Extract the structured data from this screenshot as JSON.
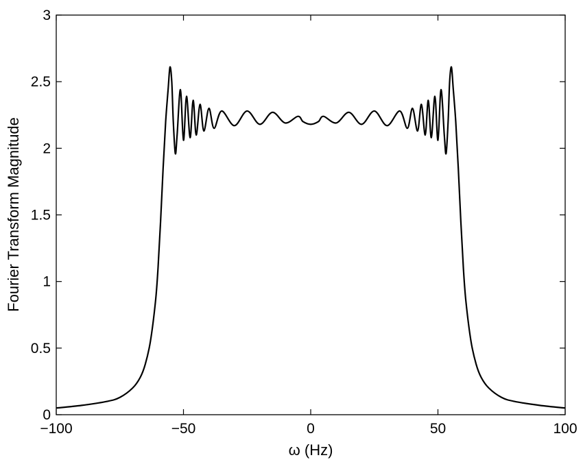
{
  "chart_data": {
    "type": "line",
    "title": "",
    "xlabel": "ω (Hz)",
    "ylabel": "Fourier Transform Magnitude",
    "xlim": [
      -100,
      100
    ],
    "ylim": [
      0,
      3
    ],
    "xticks": [
      -100,
      -50,
      0,
      50,
      100
    ],
    "xtick_labels": [
      "−100",
      "−50",
      "0",
      "50",
      "100"
    ],
    "yticks": [
      0,
      0.5,
      1,
      1.5,
      2,
      2.5,
      3
    ],
    "ytick_labels": [
      "0",
      "0.5",
      "1",
      "1.5",
      "2",
      "2.5",
      "3"
    ],
    "grid": false,
    "legend": "none",
    "line_color": "#000000",
    "series": [
      {
        "x": [
          -100,
          -90,
          -80,
          -75,
          -70,
          -67,
          -65,
          -63,
          -61,
          -60,
          -59,
          -58,
          -57,
          -56,
          -55.3,
          -54.6,
          -54,
          -53.2,
          -52.5,
          -51.2,
          -50,
          -48.8,
          -47.4,
          -46.2,
          -45,
          -43.5,
          -42,
          -40,
          -38,
          -35,
          -30,
          -25,
          -20,
          -15,
          -10,
          -5,
          -3,
          0,
          3,
          5,
          10,
          15,
          20,
          25,
          30,
          35,
          38,
          40,
          42,
          43.5,
          45,
          46.2,
          47.4,
          48.8,
          50,
          51.2,
          52.5,
          53.2,
          54,
          54.6,
          55.3,
          56,
          57,
          58,
          59,
          60,
          61,
          63,
          65,
          67,
          70,
          75,
          80,
          90,
          100
        ],
        "y": [
          0.05,
          0.07,
          0.1,
          0.13,
          0.2,
          0.28,
          0.38,
          0.55,
          0.85,
          1.1,
          1.45,
          1.85,
          2.2,
          2.45,
          2.61,
          2.5,
          2.2,
          1.96,
          2.1,
          2.44,
          2.06,
          2.39,
          2.08,
          2.36,
          2.1,
          2.33,
          2.13,
          2.3,
          2.15,
          2.28,
          2.17,
          2.28,
          2.18,
          2.27,
          2.19,
          2.24,
          2.2,
          2.18,
          2.2,
          2.24,
          2.19,
          2.27,
          2.18,
          2.28,
          2.17,
          2.28,
          2.15,
          2.3,
          2.13,
          2.33,
          2.1,
          2.36,
          2.08,
          2.39,
          2.06,
          2.44,
          2.1,
          1.96,
          2.2,
          2.5,
          2.61,
          2.45,
          2.2,
          1.85,
          1.45,
          1.1,
          0.85,
          0.55,
          0.38,
          0.28,
          0.2,
          0.13,
          0.1,
          0.07,
          0.05
        ]
      }
    ]
  }
}
